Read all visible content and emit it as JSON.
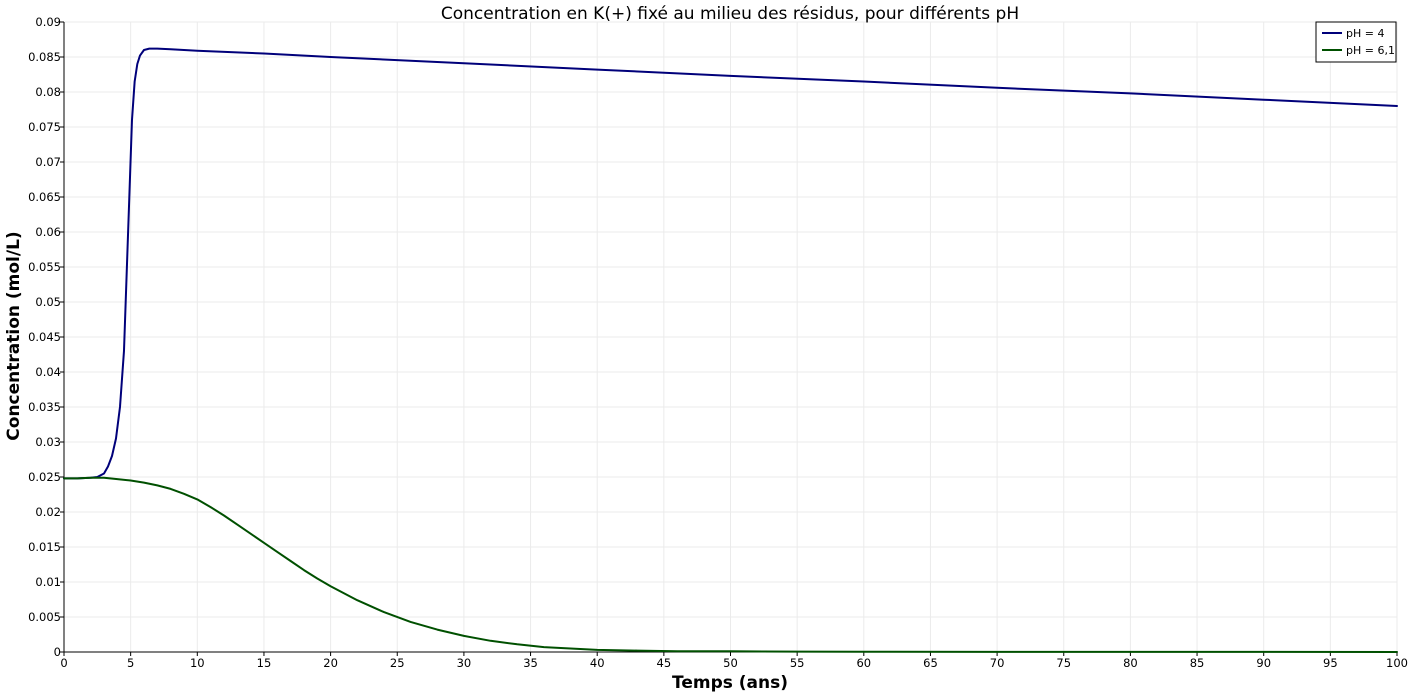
{
  "chart_data": {
    "type": "line",
    "title": "Concentration en K(+) fixé au milieu des résidus, pour différents pH",
    "xlabel": "Temps (ans)",
    "ylabel": "Concentration (mol/L)",
    "xlim": [
      0,
      100
    ],
    "ylim": [
      0,
      0.09
    ],
    "xticks": [
      0,
      5,
      10,
      15,
      20,
      25,
      30,
      35,
      40,
      45,
      50,
      55,
      60,
      65,
      70,
      75,
      80,
      85,
      90,
      95,
      100
    ],
    "yticks": [
      0,
      0.005,
      0.01,
      0.015,
      0.02,
      0.025,
      0.03,
      0.035,
      0.04,
      0.045,
      0.05,
      0.055,
      0.06,
      0.065,
      0.07,
      0.075,
      0.08,
      0.085,
      0.09
    ],
    "ytick_labels": [
      "0",
      "0.005",
      "0.01",
      "0.015",
      "0.02",
      "0.025",
      "0.03",
      "0.035",
      "0.04",
      "0.045",
      "0.05",
      "0.055",
      "0.06",
      "0.065",
      "0.07",
      "0.075",
      "0.08",
      "0.085",
      "0.09"
    ],
    "grid": true,
    "legend_position": "top-right",
    "series": [
      {
        "name": "pH = 4",
        "color": "#00007a",
        "x": [
          0,
          1,
          2,
          2.5,
          3,
          3.3,
          3.6,
          3.9,
          4.2,
          4.5,
          4.7,
          4.9,
          5.1,
          5.3,
          5.5,
          5.7,
          6,
          6.4,
          7,
          8,
          10,
          15,
          20,
          30,
          40,
          50,
          60,
          70,
          80,
          90,
          100
        ],
        "y": [
          0.0248,
          0.0248,
          0.0249,
          0.025,
          0.0255,
          0.0265,
          0.028,
          0.0305,
          0.035,
          0.043,
          0.054,
          0.065,
          0.076,
          0.0815,
          0.084,
          0.0852,
          0.086,
          0.0862,
          0.0862,
          0.0861,
          0.0859,
          0.0855,
          0.085,
          0.0841,
          0.0832,
          0.0823,
          0.0815,
          0.0806,
          0.0798,
          0.0789,
          0.078
        ]
      },
      {
        "name": "pH = 6,1",
        "color": "#005000",
        "x": [
          0,
          1,
          2,
          3,
          4,
          5,
          6,
          7,
          8,
          9,
          10,
          11,
          12,
          13,
          14,
          15,
          16,
          17,
          18,
          19,
          20,
          22,
          24,
          26,
          28,
          30,
          32,
          34,
          36,
          38,
          40,
          43,
          46,
          50,
          55,
          60,
          70,
          80,
          90,
          100
        ],
        "y": [
          0.0248,
          0.0248,
          0.0249,
          0.0249,
          0.0247,
          0.0245,
          0.0242,
          0.0238,
          0.0233,
          0.0226,
          0.0218,
          0.0207,
          0.0195,
          0.0182,
          0.0169,
          0.0156,
          0.0143,
          0.013,
          0.0117,
          0.0105,
          0.0094,
          0.0074,
          0.0057,
          0.0043,
          0.0032,
          0.0023,
          0.0016,
          0.0011,
          0.0007,
          0.0005,
          0.0003,
          0.0002,
          0.0001,
          0.0001,
          5e-05,
          3e-05,
          2e-05,
          1e-05,
          1e-05,
          0
        ]
      }
    ]
  }
}
